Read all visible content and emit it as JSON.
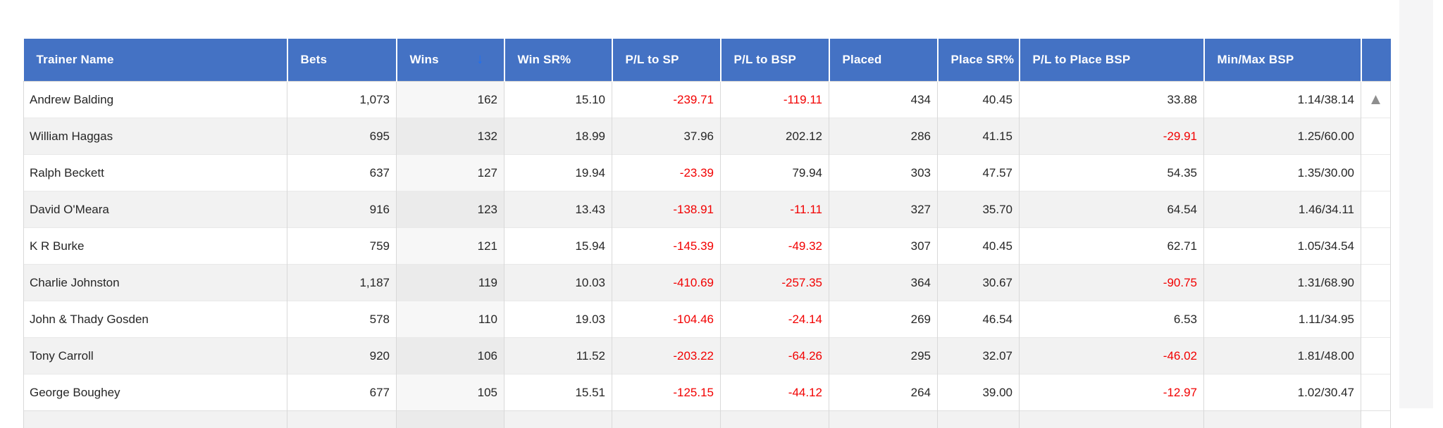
{
  "theme": {
    "header_bg": "#4472C4",
    "header_text": "#ffffff",
    "body_text": "#262626",
    "negative_value": "#f20000",
    "row_even": "#f2f2f2",
    "sort_arrow": "#2070f0",
    "scroll_triangle": "#8e8e8e"
  },
  "table": {
    "columns": [
      {
        "key": "trainer_name",
        "label": "Trainer Name"
      },
      {
        "key": "bets",
        "label": "Bets"
      },
      {
        "key": "wins",
        "label": "Wins",
        "sorted": "desc"
      },
      {
        "key": "win_sr",
        "label": "Win SR%"
      },
      {
        "key": "pl_sp",
        "label": "P/L to SP"
      },
      {
        "key": "pl_bsp",
        "label": "P/L to BSP"
      },
      {
        "key": "placed",
        "label": "Placed"
      },
      {
        "key": "place_sr",
        "label": "Place SR%"
      },
      {
        "key": "pl_place_bsp",
        "label": "P/L to Place BSP"
      },
      {
        "key": "minmax_bsp",
        "label": "Min/Max BSP"
      },
      {
        "key": "scroll",
        "label": ""
      }
    ],
    "sort_icon": "↓",
    "scroll_up_icon": "▲",
    "rows": [
      [
        "Andrew Balding",
        "1,073",
        "162",
        "15.10",
        "-239.71",
        "-119.11",
        "434",
        "40.45",
        "33.88",
        "1.14/38.14"
      ],
      [
        "William Haggas",
        "695",
        "132",
        "18.99",
        "37.96",
        "202.12",
        "286",
        "41.15",
        "-29.91",
        "1.25/60.00"
      ],
      [
        "Ralph Beckett",
        "637",
        "127",
        "19.94",
        "-23.39",
        "79.94",
        "303",
        "47.57",
        "54.35",
        "1.35/30.00"
      ],
      [
        "David O'Meara",
        "916",
        "123",
        "13.43",
        "-138.91",
        "-11.11",
        "327",
        "35.70",
        "64.54",
        "1.46/34.11"
      ],
      [
        "K R Burke",
        "759",
        "121",
        "15.94",
        "-145.39",
        "-49.32",
        "307",
        "40.45",
        "62.71",
        "1.05/34.54"
      ],
      [
        "Charlie Johnston",
        "1,187",
        "119",
        "10.03",
        "-410.69",
        "-257.35",
        "364",
        "30.67",
        "-90.75",
        "1.31/68.90"
      ],
      [
        "John & Thady Gosden",
        "578",
        "110",
        "19.03",
        "-104.46",
        "-24.14",
        "269",
        "46.54",
        "6.53",
        "1.11/34.95"
      ],
      [
        "Tony Carroll",
        "920",
        "106",
        "11.52",
        "-203.22",
        "-64.26",
        "295",
        "32.07",
        "-46.02",
        "1.81/48.00"
      ],
      [
        "George Boughey",
        "677",
        "105",
        "15.51",
        "-125.15",
        "-44.12",
        "264",
        "39.00",
        "-12.97",
        "1.02/30.47"
      ]
    ],
    "partial_next_row_visible": true
  }
}
